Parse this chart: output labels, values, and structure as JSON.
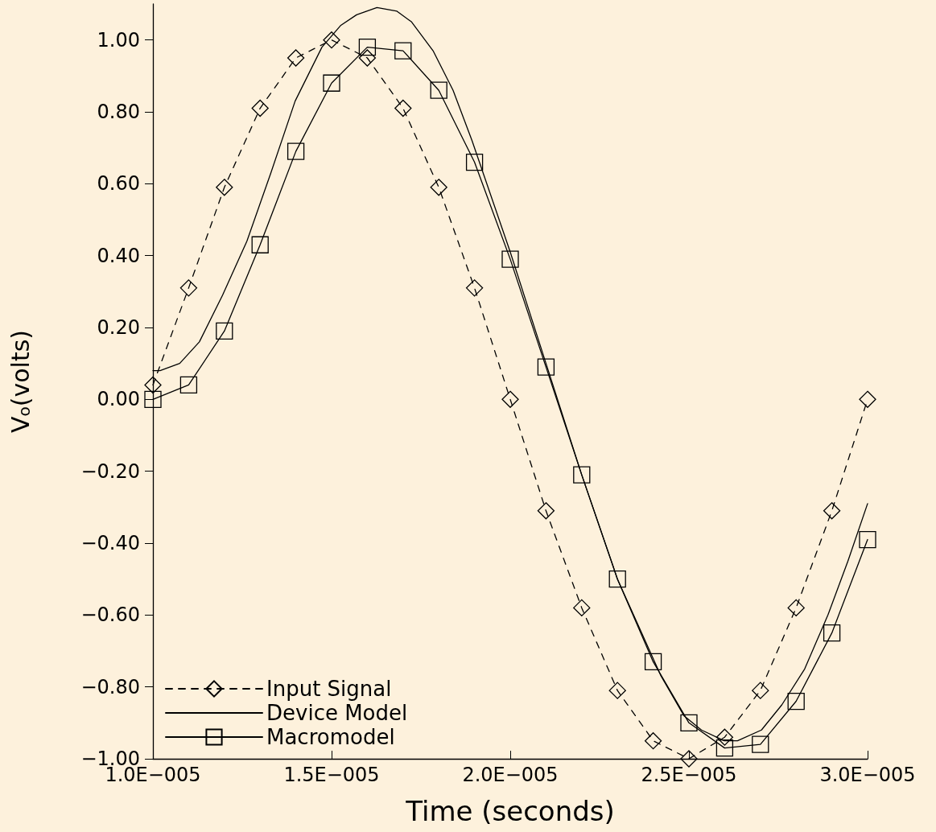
{
  "chart_data": {
    "type": "line",
    "xlabel": "Time (seconds)",
    "ylabel": "V$_{o}$(volts)",
    "xlim": [
      1e-05,
      3e-05
    ],
    "xticks": [
      {
        "value": 1e-05,
        "label": "1.0E−005"
      },
      {
        "value": 1.5e-05,
        "label": "1.5E−005"
      },
      {
        "value": 2e-05,
        "label": "2.0E−005"
      },
      {
        "value": 2.5e-05,
        "label": "2.5E−005"
      },
      {
        "value": 3e-05,
        "label": "3.0E−005"
      }
    ],
    "ylim": [
      -1,
      1.1
    ],
    "yticks": [
      {
        "value": -1,
        "label": "−1.00"
      },
      {
        "value": -0.8,
        "label": "−0.80"
      },
      {
        "value": -0.6,
        "label": "−0.60"
      },
      {
        "value": -0.4,
        "label": "−0.40"
      },
      {
        "value": -0.2,
        "label": "−0.20"
      },
      {
        "value": 0,
        "label": "0.00"
      },
      {
        "value": 0.2,
        "label": "0.20"
      },
      {
        "value": 0.4,
        "label": "0.40"
      },
      {
        "value": 0.6,
        "label": "0.60"
      },
      {
        "value": 0.8,
        "label": "0.80"
      },
      {
        "value": 1,
        "label": "1.00"
      }
    ],
    "grid": false,
    "legend": "bottom left",
    "series": [
      {
        "name": "Input Signal",
        "color": "#000000",
        "marker": "diamond",
        "line_style": "dashed",
        "x": [
          1e-05,
          1.1e-05,
          1.2e-05,
          1.3e-05,
          1.4e-05,
          1.5e-05,
          1.6e-05,
          1.7e-05,
          1.8e-05,
          1.9e-05,
          2e-05,
          2.1e-05,
          2.2e-05,
          2.3e-05,
          2.4e-05,
          2.5e-05,
          2.6e-05,
          2.7e-05,
          2.8e-05,
          2.9e-05,
          3e-05
        ],
        "values": [
          0.04,
          0.31,
          0.59,
          0.81,
          0.95,
          1.0,
          0.95,
          0.81,
          0.59,
          0.31,
          0.0,
          -0.31,
          -0.58,
          -0.81,
          -0.95,
          -1.0,
          -0.94,
          -0.81,
          -0.58,
          -0.31,
          0.0
        ]
      },
      {
        "name": "Device Model",
        "color": "#000000",
        "marker": "none",
        "line_style": "solid",
        "x": [
          1e-05,
          1.02e-05,
          1.075e-05,
          1.13e-05,
          1.195e-05,
          1.263e-05,
          1.33e-05,
          1.398e-05,
          1.473e-05,
          1.525e-05,
          1.57e-05,
          1.627e-05,
          1.683e-05,
          1.724e-05,
          1.784e-05,
          1.84e-05,
          1.893e-05,
          2e-05,
          2.1e-05,
          2.2e-05,
          2.3e-05,
          2.422e-05,
          2.486e-05,
          2.535e-05,
          2.599e-05,
          2.636e-05,
          2.703e-05,
          2.76e-05,
          2.824e-05,
          2.889e-05,
          2.945e-05,
          3e-05
        ],
        "values": [
          0.08,
          0.08,
          0.1,
          0.16,
          0.29,
          0.44,
          0.63,
          0.83,
          0.98,
          1.04,
          1.07,
          1.09,
          1.08,
          1.05,
          0.97,
          0.86,
          0.72,
          0.41,
          0.1,
          -0.21,
          -0.5,
          -0.77,
          -0.88,
          -0.92,
          -0.95,
          -0.95,
          -0.92,
          -0.85,
          -0.75,
          -0.6,
          -0.45,
          -0.29
        ]
      },
      {
        "name": "Macromodel",
        "color": "#000000",
        "marker": "square",
        "line_style": "solid",
        "x": [
          1e-05,
          1.1e-05,
          1.2e-05,
          1.3e-05,
          1.4e-05,
          1.5e-05,
          1.6e-05,
          1.7e-05,
          1.8e-05,
          1.9e-05,
          2e-05,
          2.1e-05,
          2.2e-05,
          2.3e-05,
          2.4e-05,
          2.5e-05,
          2.6e-05,
          2.7e-05,
          2.8e-05,
          2.9e-05,
          3e-05
        ],
        "values": [
          0.0,
          0.04,
          0.19,
          0.43,
          0.69,
          0.88,
          0.98,
          0.97,
          0.86,
          0.66,
          0.39,
          0.09,
          -0.21,
          -0.5,
          -0.73,
          -0.9,
          -0.97,
          -0.96,
          -0.84,
          -0.65,
          -0.39
        ]
      }
    ]
  }
}
